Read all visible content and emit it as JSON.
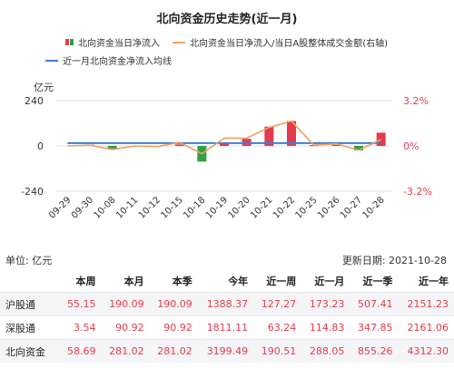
{
  "title": "北向资金历史走势(近一月)",
  "legend": {
    "bar_label": "北向资金当日净流入",
    "ratio_label": "北向资金当日净流入/当日A股整体成交金额(右轴)",
    "avg_label": "近一月北向资金净流入均线"
  },
  "colors": {
    "positive": "#e33b4c",
    "negative": "#2ea043",
    "ratio_line": "#f0a060",
    "avg_line": "#3b7fd9",
    "right_axis_text": "#e33b4c",
    "grid": "#e0e0e0"
  },
  "chart_data": {
    "type": "bar",
    "left_unit": "亿元",
    "categories": [
      "09-29",
      "09-30",
      "10-08",
      "10-11",
      "10-12",
      "10-15",
      "10-18",
      "10-19",
      "10-20",
      "10-21",
      "10-22",
      "10-25",
      "10-26",
      "10-27",
      "10-28"
    ],
    "series": [
      {
        "name": "北向资金当日净流入",
        "type": "bar",
        "axis": "left",
        "values": [
          0,
          6,
          -14,
          0,
          -2,
          8,
          -83,
          18,
          38,
          102,
          132,
          4,
          6,
          -24,
          70
        ]
      },
      {
        "name": "北向资金当日净流入/当日A股整体成交金额(右轴)",
        "type": "line",
        "axis": "right",
        "values": [
          0.0,
          0.05,
          -0.25,
          0.0,
          -0.05,
          0.25,
          -0.55,
          0.55,
          0.55,
          1.3,
          1.75,
          0.05,
          0.15,
          -0.3,
          0.45
        ]
      },
      {
        "name": "近一月北向资金净流入均线",
        "type": "line",
        "axis": "left",
        "values": [
          15,
          15,
          15,
          15,
          15,
          15,
          15,
          15,
          15,
          15,
          15,
          15,
          15,
          15,
          15
        ]
      }
    ],
    "left_axis": {
      "ticks": [
        240,
        0,
        -240
      ],
      "tick_labels": [
        "240",
        "0",
        "-240"
      ],
      "ylim": [
        -240,
        240
      ]
    },
    "right_axis": {
      "ticks": [
        3.2,
        0,
        -3.2
      ],
      "tick_labels": [
        "3.2%",
        "0%",
        "-3.2%"
      ],
      "ylim": [
        -3.2,
        3.2
      ]
    },
    "grid": true,
    "legend_position": "top"
  },
  "meta": {
    "unit_text": "单位: 亿元",
    "updated_text": "更新日期: 2021-10-28"
  },
  "table": {
    "headers": [
      "",
      "本周",
      "本月",
      "本季",
      "今年",
      "近一周",
      "近一月",
      "近一季",
      "近一年"
    ],
    "rows": [
      {
        "label": "沪股通",
        "values": [
          "55.15",
          "190.09",
          "190.09",
          "1388.37",
          "127.27",
          "173.23",
          "507.41",
          "2151.23"
        ]
      },
      {
        "label": "深股通",
        "values": [
          "3.54",
          "90.92",
          "90.92",
          "1811.11",
          "63.24",
          "114.83",
          "347.85",
          "2161.06"
        ]
      },
      {
        "label": "北向资金",
        "values": [
          "58.69",
          "281.02",
          "281.02",
          "3199.49",
          "190.51",
          "288.05",
          "855.26",
          "4312.30"
        ]
      }
    ]
  }
}
